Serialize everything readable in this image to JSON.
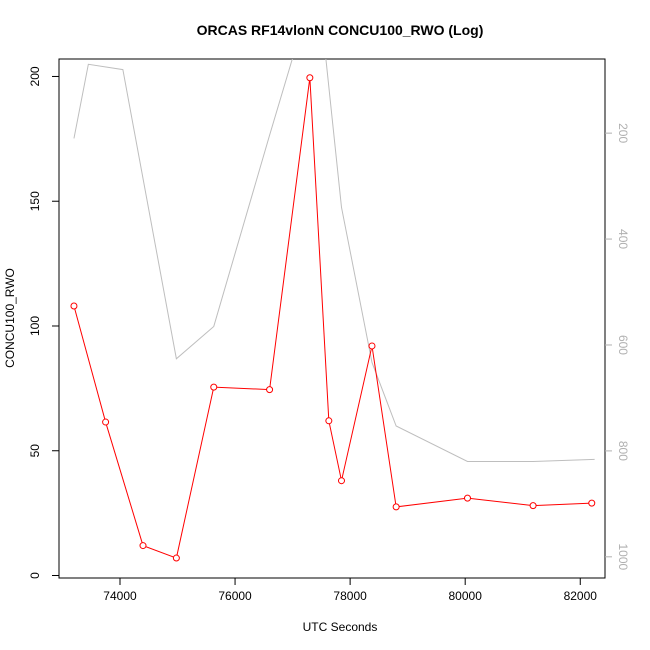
{
  "chart_data": {
    "type": "line",
    "title": "ORCAS RF14vlonN CONCU100_RWO (Log)",
    "xlabel": "UTC Seconds",
    "ylabel": "CONCU100_RWO",
    "xlim": [
      72940,
      82430
    ],
    "ylim": [
      -1,
      207
    ],
    "x_ticks": [
      74000,
      76000,
      78000,
      80000,
      82000
    ],
    "y_ticks": [
      0,
      50,
      100,
      150,
      200
    ],
    "y2_ticks": [
      200,
      400,
      600,
      800,
      1000
    ],
    "y2_inverted": true,
    "y2_lim": [
      60,
      1040
    ],
    "grid": false,
    "series": [
      {
        "role": "primary",
        "color": "#ff0000",
        "marker": "open-circle",
        "x": [
          73200,
          73750,
          74400,
          74980,
          75630,
          76600,
          77300,
          77630,
          77850,
          78380,
          78800,
          80040,
          81180,
          82200
        ],
        "values": [
          108,
          61.5,
          12,
          7,
          75.5,
          74.5,
          199.5,
          62,
          38,
          92,
          27.5,
          31,
          28,
          29
        ]
      },
      {
        "role": "secondary",
        "color": "#bebebe",
        "marker": "none",
        "x": [
          73200,
          73450,
          74050,
          74980,
          75630,
          76600,
          77050,
          77550,
          77850,
          78380,
          78800,
          80040,
          81180,
          82250
        ],
        "values": [
          210,
          70,
          80,
          626,
          565,
          204,
          40,
          30,
          340,
          633,
          753,
          820,
          820,
          816
        ]
      }
    ]
  }
}
